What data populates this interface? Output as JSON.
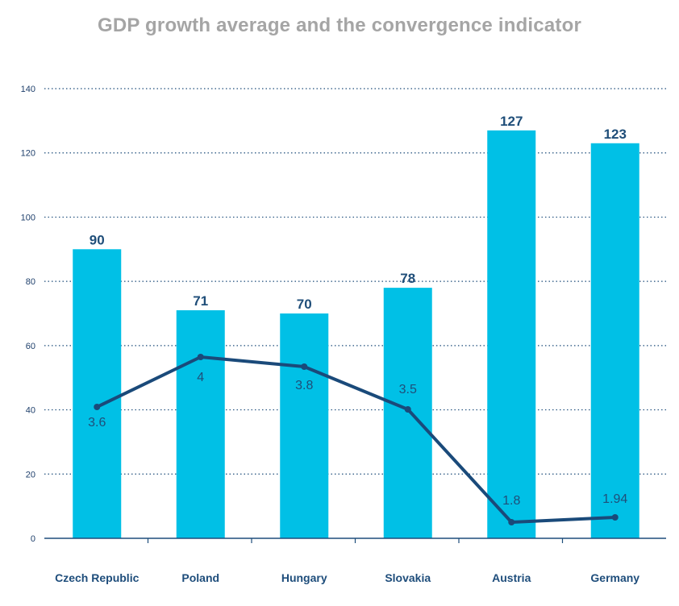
{
  "chart_data": {
    "type": "bar",
    "title": "GDP growth average and the convergence indicator",
    "categories": [
      "Czech Republic",
      "Poland",
      "Hungary",
      "Slovakia",
      "Austria",
      "Germany"
    ],
    "series": [
      {
        "type": "bar",
        "values": [
          90,
          71,
          70,
          78,
          127,
          123
        ],
        "labels": [
          "90",
          "71",
          "70",
          "78",
          "127",
          "123"
        ],
        "color": "#00c0e6"
      },
      {
        "type": "line",
        "values": [
          3.6,
          4,
          3.8,
          3.5,
          1.8,
          1.94
        ],
        "labels": [
          "3.6",
          "4",
          "3.8",
          "3.5",
          "1.8",
          "1.94"
        ],
        "color": "#1a4a7a"
      }
    ],
    "ylim": [
      0,
      140
    ],
    "yticks": [
      "0",
      "20",
      "40",
      "60",
      "80",
      "100",
      "120",
      "140"
    ],
    "grid": true
  }
}
